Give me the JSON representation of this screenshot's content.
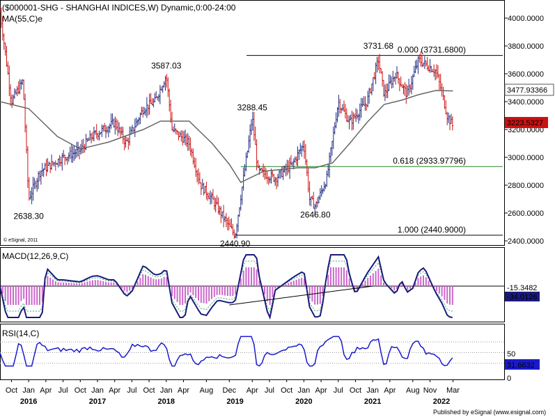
{
  "chart_data": {
    "type": "candlestick",
    "instrument": "($000001-SHG - SHANGHAI INDICES,W) Dynamic,0:00-24:00",
    "ma_label": "MA(55,C)e",
    "price_axis": {
      "ticks": [
        "4000.0000",
        "3800.0000",
        "3600.0000",
        "3400.0000",
        "3200.0000",
        "3000.0000",
        "2800.0000",
        "2600.0000",
        "2400.0000"
      ],
      "ylim": [
        2380,
        4080
      ]
    },
    "price_path": [
      [
        "2015-08",
        4050
      ],
      [
        "2015-10",
        3400
      ],
      [
        "2015-12",
        3550
      ],
      [
        "2016-01",
        2700
      ],
      [
        "2016-03",
        2900
      ],
      [
        "2016-07",
        3000
      ],
      [
        "2016-10",
        3050
      ],
      [
        "2016-12",
        3150
      ],
      [
        "2017-04",
        3250
      ],
      [
        "2017-06",
        3100
      ],
      [
        "2017-09",
        3350
      ],
      [
        "2017-11",
        3400
      ],
      [
        "2018-01",
        3587
      ],
      [
        "2018-02",
        3200
      ],
      [
        "2018-05",
        3100
      ],
      [
        "2018-07",
        2800
      ],
      [
        "2018-09",
        2700
      ],
      [
        "2018-12",
        2500
      ],
      [
        "2019-01",
        2441
      ],
      [
        "2019-03",
        3000
      ],
      [
        "2019-04",
        3288
      ],
      [
        "2019-05",
        2900
      ],
      [
        "2019-08",
        2850
      ],
      [
        "2019-11",
        2950
      ],
      [
        "2020-01",
        3100
      ],
      [
        "2020-02",
        2700
      ],
      [
        "2020-03",
        2647
      ],
      [
        "2020-05",
        2850
      ],
      [
        "2020-07",
        3400
      ],
      [
        "2020-09",
        3250
      ],
      [
        "2020-12",
        3400
      ],
      [
        "2021-02",
        3700
      ],
      [
        "2021-03",
        3450
      ],
      [
        "2021-05",
        3600
      ],
      [
        "2021-07",
        3450
      ],
      [
        "2021-09",
        3700
      ],
      [
        "2021-12",
        3620
      ],
      [
        "2022-01",
        3480
      ],
      [
        "2022-02",
        3300
      ],
      [
        "2022-03",
        3223
      ]
    ],
    "ma_path": [
      [
        "2015-08",
        3400
      ],
      [
        "2016-01",
        3350
      ],
      [
        "2016-06",
        3150
      ],
      [
        "2016-10",
        3060
      ],
      [
        "2017-03",
        3110
      ],
      [
        "2017-09",
        3200
      ],
      [
        "2017-12",
        3260
      ],
      [
        "2018-05",
        3260
      ],
      [
        "2018-09",
        3100
      ],
      [
        "2018-12",
        2950
      ],
      [
        "2019-02",
        2820
      ],
      [
        "2019-06",
        2900
      ],
      [
        "2019-12",
        2925
      ],
      [
        "2020-03",
        2925
      ],
      [
        "2020-06",
        2960
      ],
      [
        "2020-09",
        3100
      ],
      [
        "2020-12",
        3250
      ],
      [
        "2021-03",
        3380
      ],
      [
        "2021-06",
        3410
      ],
      [
        "2021-09",
        3450
      ],
      [
        "2021-12",
        3480
      ],
      [
        "2022-03",
        3477
      ]
    ],
    "annotations": [
      {
        "text": "3587.03",
        "x": "2018-01",
        "y": 3587
      },
      {
        "text": "3288.45",
        "x": "2019-04",
        "y": 3288
      },
      {
        "text": "3731.68",
        "x": "2021-02",
        "y": 3731
      },
      {
        "text": "2638.30",
        "x": "2016-01",
        "y": 2638
      },
      {
        "text": "2440.90",
        "x": "2019-01",
        "y": 2441
      },
      {
        "text": "2646.80",
        "x": "2020-03",
        "y": 2647
      }
    ],
    "fib_levels": [
      {
        "label": "0.000 (3731.6800)",
        "value": 3731.68
      },
      {
        "label": "0.618 (2933.97796)",
        "value": 2933.97796
      },
      {
        "label": "1.000 (2440.9000)",
        "value": 2440.9
      }
    ],
    "last_price": "3223.5327",
    "ma_value": "3477.93366",
    "macd": {
      "label": "MACD(12,26,9,C)",
      "values": [
        "-15.3482",
        "-34.0126"
      ]
    },
    "rsi": {
      "label": "RSI(14,C)",
      "ticks": [
        "50",
        "0"
      ],
      "value": "31.6632"
    },
    "x_axis": {
      "month_labels": [
        {
          "text": "Oct",
          "x": "2015-10"
        },
        {
          "text": "Jan",
          "x": "2016-01"
        },
        {
          "text": "Apr",
          "x": "2016-04"
        },
        {
          "text": "Jul",
          "x": "2016-07"
        },
        {
          "text": "Oct",
          "x": "2016-10"
        },
        {
          "text": "Jan",
          "x": "2017-01"
        },
        {
          "text": "Apr",
          "x": "2017-04"
        },
        {
          "text": "Jul",
          "x": "2017-07"
        },
        {
          "text": "Oct",
          "x": "2017-10"
        },
        {
          "text": "Jan",
          "x": "2018-01"
        },
        {
          "text": "Apr",
          "x": "2018-04"
        },
        {
          "text": "Aug",
          "x": "2018-08"
        },
        {
          "text": "Dec",
          "x": "2018-12"
        },
        {
          "text": "Apr",
          "x": "2019-04"
        },
        {
          "text": "Jul",
          "x": "2019-07"
        },
        {
          "text": "Oct",
          "x": "2019-10"
        },
        {
          "text": "Jan",
          "x": "2020-01"
        },
        {
          "text": "Apr",
          "x": "2020-04"
        },
        {
          "text": "Jul",
          "x": "2020-07"
        },
        {
          "text": "Oct",
          "x": "2020-10"
        },
        {
          "text": "Jan",
          "x": "2021-01"
        },
        {
          "text": "Apr",
          "x": "2021-04"
        },
        {
          "text": "Aug",
          "x": "2021-08"
        },
        {
          "text": "Nov",
          "x": "2021-11"
        },
        {
          "text": "Mar",
          "x": "2022-03"
        }
      ],
      "year_labels": [
        {
          "text": "2016",
          "x": "2016-01"
        },
        {
          "text": "2017",
          "x": "2017-01"
        },
        {
          "text": "2018",
          "x": "2018-01"
        },
        {
          "text": "2019",
          "x": "2019-01"
        },
        {
          "text": "2020",
          "x": "2020-01"
        },
        {
          "text": "2021",
          "x": "2021-01"
        },
        {
          "text": "2022",
          "x": "2022-01"
        }
      ]
    }
  },
  "copyright": "© eSignal, 2011",
  "footer": "Published by eSignal (www.esignal.com)",
  "colors": {
    "up_bar": "#1e2a80",
    "down_bar": "#cc1111",
    "ma_line": "#666666",
    "fib_line": "#228822",
    "fib_text": "#1a7a1a",
    "macd_line": "#1a1a7a",
    "macd_hist": "#cc66cc",
    "rsi_line": "#1a1acc",
    "price_box": "#cc1111"
  }
}
